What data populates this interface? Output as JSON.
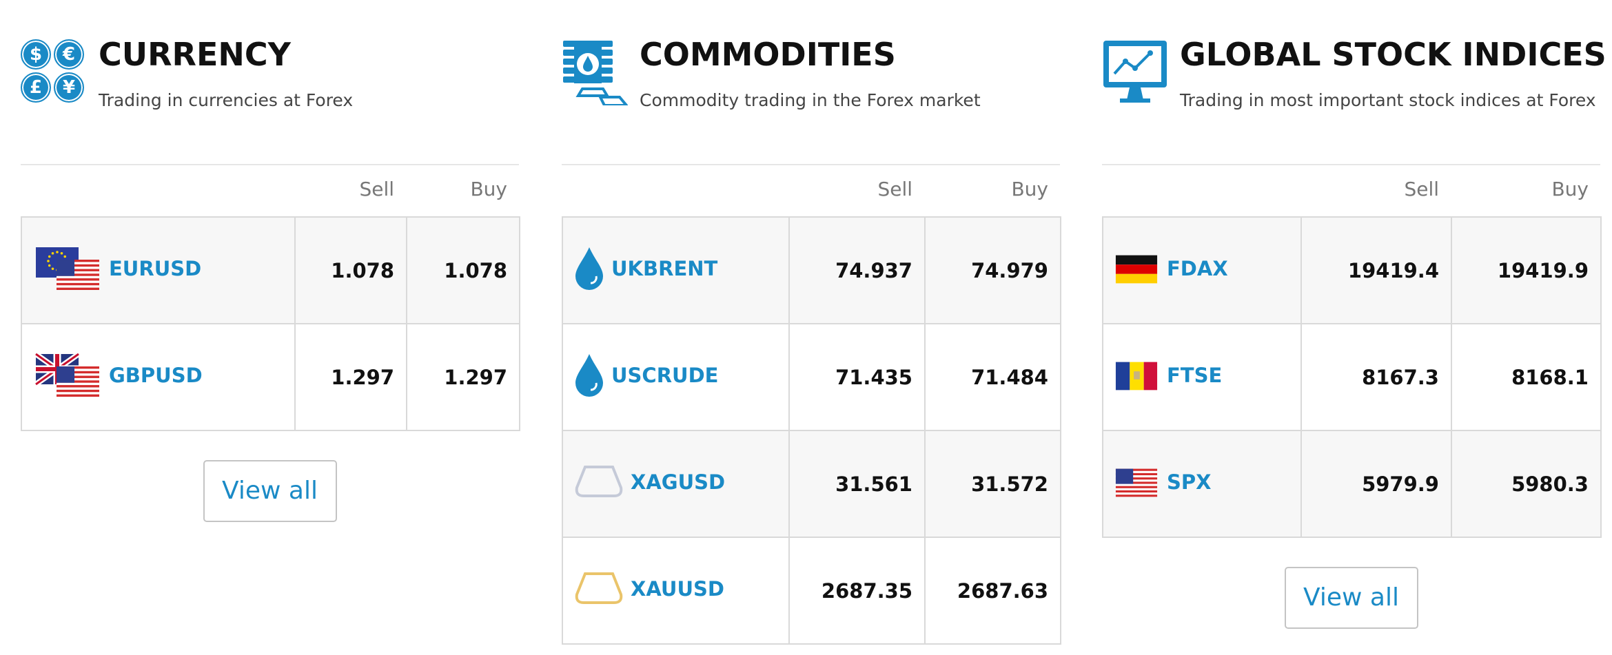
{
  "sections": [
    {
      "title": "CURRENCY",
      "subtitle": "Trading in currencies at Forex",
      "icon_glyphs": [
        "$",
        "€",
        "£",
        "¥"
      ],
      "columns": [
        "Sell",
        "Buy"
      ],
      "rows": [
        {
          "symbol": "EURUSD",
          "sell": 1.078,
          "buy": 1.078
        },
        {
          "symbol": "GBPUSD",
          "sell": 1.297,
          "buy": 1.297
        }
      ],
      "view_all": "View all"
    },
    {
      "title": "COMMODITIES",
      "subtitle": "Commodity trading in the Forex market",
      "columns": [
        "Sell",
        "Buy"
      ],
      "rows": [
        {
          "symbol": "UKBRENT",
          "sell": 74.937,
          "buy": 74.979
        },
        {
          "symbol": "USCRUDE",
          "sell": 71.435,
          "buy": 71.484
        },
        {
          "symbol": "XAGUSD",
          "sell": 31.561,
          "buy": 31.572
        },
        {
          "symbol": "XAUUSD",
          "sell": 2687.35,
          "buy": 2687.63
        }
      ]
    },
    {
      "title": "GLOBAL STOCK INDICES",
      "subtitle": "Trading in most important stock indices at Forex",
      "columns": [
        "Sell",
        "Buy"
      ],
      "rows": [
        {
          "symbol": "FDAX",
          "sell": 19419.4,
          "buy": 19419.9
        },
        {
          "symbol": "FTSE",
          "sell": 8167.3,
          "buy": 8168.1
        },
        {
          "symbol": "SPX",
          "sell": 5979.9,
          "buy": 5980.3
        }
      ],
      "view_all": "View all"
    }
  ]
}
